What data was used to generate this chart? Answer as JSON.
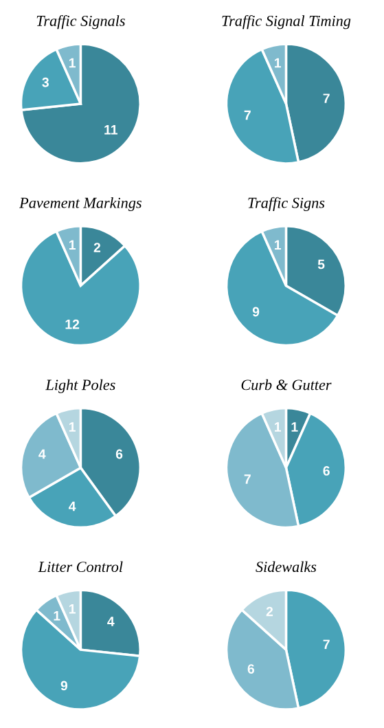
{
  "chart_data": [
    {
      "type": "pie",
      "title": "Traffic Signals",
      "categories": [
        null,
        null,
        null
      ],
      "values": [
        11,
        3,
        1
      ],
      "colors": [
        "#3a8799",
        "#48a3b8",
        "#7fbacd"
      ],
      "data_labels": true
    },
    {
      "type": "pie",
      "title": "Traffic Signal Timing",
      "categories": [
        null,
        null,
        null
      ],
      "values": [
        7,
        7,
        1
      ],
      "colors": [
        "#3a8799",
        "#48a3b8",
        "#7fbacd"
      ],
      "data_labels": true
    },
    {
      "type": "pie",
      "title": "Pavement Markings",
      "categories": [
        null,
        null,
        null
      ],
      "values": [
        2,
        12,
        1
      ],
      "colors": [
        "#3a8799",
        "#48a3b8",
        "#7fbacd"
      ],
      "data_labels": true
    },
    {
      "type": "pie",
      "title": "Traffic Signs",
      "categories": [
        null,
        null,
        null
      ],
      "values": [
        5,
        9,
        1
      ],
      "colors": [
        "#3a8799",
        "#48a3b8",
        "#7fbacd"
      ],
      "data_labels": true
    },
    {
      "type": "pie",
      "title": "Light Poles",
      "categories": [
        null,
        null,
        null,
        null
      ],
      "values": [
        6,
        4,
        4,
        1
      ],
      "colors": [
        "#3a8799",
        "#48a3b8",
        "#7fbacd",
        "#b5d6e0"
      ],
      "data_labels": true
    },
    {
      "type": "pie",
      "title": "Curb & Gutter",
      "categories": [
        null,
        null,
        null,
        null
      ],
      "values": [
        1,
        6,
        7,
        1
      ],
      "colors": [
        "#3a8799",
        "#48a3b8",
        "#7fbacd",
        "#b5d6e0"
      ],
      "data_labels": true
    },
    {
      "type": "pie",
      "title": "Litter Control",
      "categories": [
        null,
        null,
        null,
        null
      ],
      "values": [
        4,
        9,
        1,
        1
      ],
      "colors": [
        "#3a8799",
        "#48a3b8",
        "#7fbacd",
        "#b5d6e0"
      ],
      "data_labels": true
    },
    {
      "type": "pie",
      "title": "Sidewalks",
      "categories": [
        null,
        null,
        null
      ],
      "values": [
        7,
        6,
        2
      ],
      "colors": [
        "#48a3b8",
        "#7fbacd",
        "#b5d6e0"
      ],
      "data_labels": true
    }
  ]
}
